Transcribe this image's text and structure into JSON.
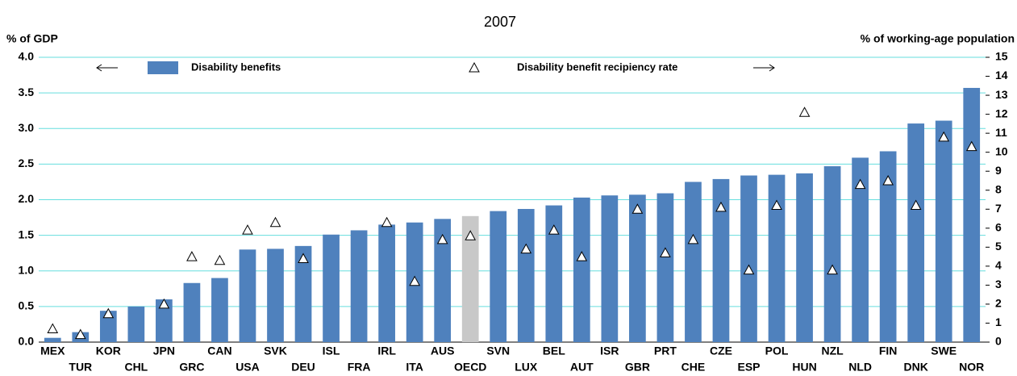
{
  "chart_data": {
    "type": "bar",
    "subtitle": "2007",
    "y_label": "% of GDP",
    "y2_label": "% of working-age population",
    "categories": [
      "MEX",
      "TUR",
      "KOR",
      "CHL",
      "JPN",
      "GRC",
      "CAN",
      "USA",
      "SVK",
      "DEU",
      "ISL",
      "FRA",
      "IRL",
      "ITA",
      "AUS",
      "OECD",
      "SVN",
      "LUX",
      "BEL",
      "AUT",
      "ISR",
      "GBR",
      "PRT",
      "CHE",
      "CZE",
      "ESP",
      "POL",
      "HUN",
      "NZL",
      "NLD",
      "FIN",
      "DNK",
      "SWE",
      "NOR"
    ],
    "series": [
      {
        "name": "Disability benefits",
        "color": "#4f81bd",
        "highlight": {
          "index": 15,
          "color": "#c8c8c8"
        },
        "values": [
          0.06,
          0.14,
          0.44,
          0.5,
          0.6,
          0.83,
          0.9,
          1.3,
          1.31,
          1.35,
          1.51,
          1.57,
          1.65,
          1.68,
          1.73,
          1.77,
          1.84,
          1.87,
          1.92,
          2.03,
          2.06,
          2.07,
          2.09,
          2.25,
          2.29,
          2.34,
          2.35,
          2.37,
          2.47,
          2.59,
          2.68,
          3.07,
          3.11,
          3.57
        ]
      },
      {
        "name": "Disability benefit recipiency rate",
        "color": "#000000",
        "marker": "triangle",
        "axis": "y2",
        "values": [
          0.7,
          0.4,
          1.5,
          null,
          2.0,
          4.5,
          4.3,
          5.9,
          6.3,
          4.4,
          null,
          null,
          6.3,
          3.2,
          5.4,
          5.6,
          null,
          4.9,
          5.9,
          4.5,
          null,
          7.0,
          4.7,
          5.4,
          7.1,
          3.8,
          7.2,
          12.1,
          3.8,
          8.3,
          8.5,
          7.2,
          10.8,
          10.3
        ]
      }
    ],
    "ylim": [
      0,
      4
    ],
    "yticks": [
      {
        "value": 0,
        "label": "0.0"
      },
      0.5,
      {
        "value": 1,
        "label": "1.0"
      },
      1.5,
      {
        "value": 2,
        "label": "2.0"
      },
      2.5,
      {
        "value": 3,
        "label": "3.0"
      },
      3.5,
      {
        "value": 4,
        "label": "4.0"
      }
    ],
    "y2lim": [
      0,
      15
    ],
    "y2ticks": [
      0,
      1,
      2,
      3,
      4,
      5,
      6,
      7,
      8,
      9,
      10,
      11,
      12,
      13,
      14,
      15
    ],
    "grid": true,
    "grid_color": "#66dede"
  }
}
